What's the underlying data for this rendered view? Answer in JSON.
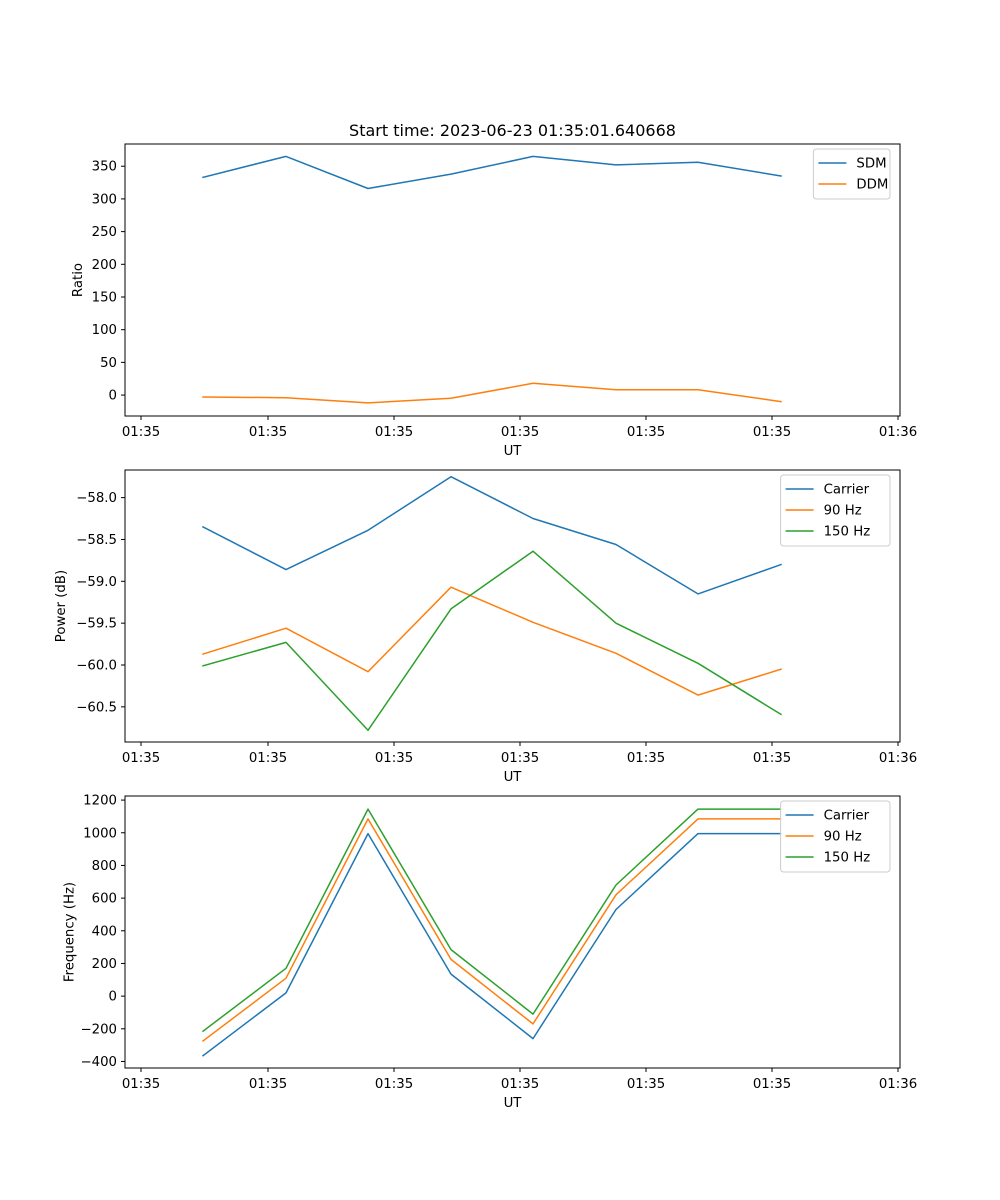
{
  "title": "Start time: 2023-06-23 01:35:01.640668",
  "chart_data": [
    {
      "type": "line",
      "xlabel": "UT",
      "ylabel": "Ratio",
      "xtick_labels": [
        "01:35",
        "01:35",
        "01:35",
        "01:35",
        "01:35",
        "01:35",
        "01:36"
      ],
      "yticks": [
        0,
        50,
        100,
        150,
        200,
        250,
        300,
        350
      ],
      "ylim": [
        -32,
        384
      ],
      "legend_loc": "upper right",
      "series": [
        {
          "name": "SDM",
          "color": "#1f77b4",
          "values": [
            333,
            365,
            316,
            338,
            365,
            352,
            356,
            335
          ]
        },
        {
          "name": "DDM",
          "color": "#ff7f0e",
          "values": [
            -3,
            -4,
            -12,
            -5,
            18,
            8,
            8,
            -10
          ]
        }
      ]
    },
    {
      "type": "line",
      "xlabel": "UT",
      "ylabel": "Power (dB)",
      "xtick_labels": [
        "01:35",
        "01:35",
        "01:35",
        "01:35",
        "01:35",
        "01:35",
        "01:36"
      ],
      "yticks": [
        -58.0,
        -58.5,
        -59.0,
        -59.5,
        -60.0,
        -60.5
      ],
      "ylim": [
        -60.92,
        -57.67
      ],
      "legend_loc": "upper right",
      "series": [
        {
          "name": "Carrier",
          "color": "#1f77b4",
          "values": [
            -58.35,
            -58.86,
            -58.39,
            -57.75,
            -58.25,
            -58.56,
            -59.15,
            -58.8
          ]
        },
        {
          "name": "90 Hz",
          "color": "#ff7f0e",
          "values": [
            -59.87,
            -59.56,
            -60.08,
            -59.07,
            -59.49,
            -59.86,
            -60.36,
            -60.05
          ]
        },
        {
          "name": "150 Hz",
          "color": "#2ca02c",
          "values": [
            -60.01,
            -59.73,
            -60.78,
            -59.33,
            -58.64,
            -59.5,
            -59.98,
            -60.59
          ]
        }
      ]
    },
    {
      "type": "line",
      "xlabel": "UT",
      "ylabel": "Frequency (Hz)",
      "xtick_labels": [
        "01:35",
        "01:35",
        "01:35",
        "01:35",
        "01:35",
        "01:35",
        "01:36"
      ],
      "yticks": [
        -400,
        -200,
        0,
        200,
        400,
        600,
        800,
        1000,
        1200
      ],
      "ylim": [
        -440,
        1225
      ],
      "legend_loc": "upper right",
      "series": [
        {
          "name": "Carrier",
          "color": "#1f77b4",
          "values": [
            -365,
            20,
            995,
            135,
            -260,
            530,
            995,
            995
          ]
        },
        {
          "name": "90 Hz",
          "color": "#ff7f0e",
          "values": [
            -275,
            110,
            1085,
            225,
            -170,
            620,
            1085,
            1085
          ]
        },
        {
          "name": "150 Hz",
          "color": "#2ca02c",
          "values": [
            -215,
            170,
            1145,
            285,
            -110,
            680,
            1145,
            1145
          ]
        }
      ]
    }
  ]
}
